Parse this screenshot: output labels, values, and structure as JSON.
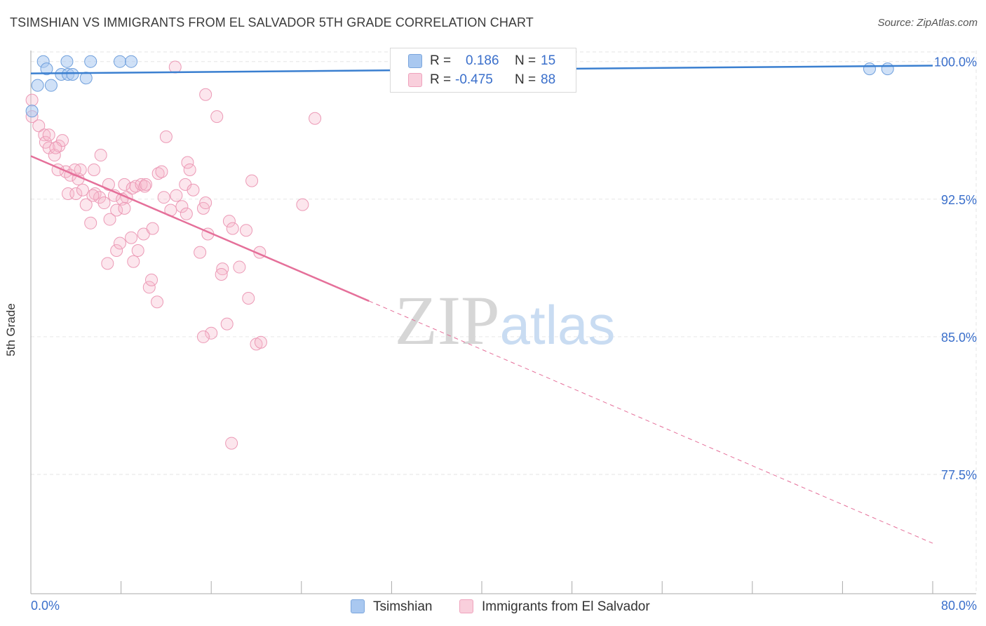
{
  "chart_data": {
    "type": "scatter",
    "title": "TSIMSHIAN VS IMMIGRANTS FROM EL SALVADOR 5TH GRADE CORRELATION CHART",
    "source": "Source: ZipAtlas.com",
    "xlabel": "",
    "ylabel": "5th Grade",
    "xlim": [
      0,
      80
    ],
    "ylim": [
      71,
      100.6
    ],
    "x_tick_labels": [
      "0.0%",
      "80.0%"
    ],
    "y_ticks": [
      100,
      92.5,
      85,
      77.5
    ],
    "y_tick_labels": [
      "100.0%",
      "92.5%",
      "85.0%",
      "77.5%"
    ],
    "grid": true,
    "watermark": "ZIPatlas",
    "colors": {
      "blue": "#a9c8f0",
      "blue_line": "#3a7fd0",
      "pink": "#f5b8cc",
      "pink_line": "#e5709a",
      "axis_text": "#3a6fcb"
    },
    "stats": [
      {
        "r_label": "R =",
        "r_value": "0.186",
        "n_label": "N =",
        "n_value": "15"
      },
      {
        "r_label": "R =",
        "r_value": "-0.475",
        "n_label": "N =",
        "n_value": "88"
      }
    ],
    "series": [
      {
        "name": "Tsimshian",
        "color": "#a9c8f0",
        "points": [
          [
            1.1,
            100.0
          ],
          [
            1.4,
            99.6
          ],
          [
            3.2,
            100.0
          ],
          [
            5.3,
            100.0
          ],
          [
            7.9,
            100.0
          ],
          [
            8.9,
            100.0
          ],
          [
            0.6,
            98.7
          ],
          [
            1.8,
            98.7
          ],
          [
            2.7,
            99.3
          ],
          [
            3.3,
            99.3
          ],
          [
            3.7,
            99.3
          ],
          [
            4.9,
            99.1
          ],
          [
            0.1,
            97.3
          ],
          [
            74.4,
            99.6
          ],
          [
            76.0,
            99.6
          ]
        ],
        "trend": {
          "x": [
            0,
            80
          ],
          "y": [
            99.35,
            99.78
          ]
        }
      },
      {
        "name": "Immigrants from El Salvador",
        "color": "#f5b8cc",
        "points": [
          [
            0.1,
            97.9
          ],
          [
            0.1,
            97.0
          ],
          [
            0.7,
            96.5
          ],
          [
            1.2,
            96.0
          ],
          [
            1.3,
            95.6
          ],
          [
            1.6,
            95.3
          ],
          [
            2.1,
            94.9
          ],
          [
            2.5,
            95.4
          ],
          [
            2.8,
            95.7
          ],
          [
            3.1,
            94.0
          ],
          [
            3.5,
            93.8
          ],
          [
            4.2,
            93.6
          ],
          [
            4.4,
            94.1
          ],
          [
            3.3,
            92.8
          ],
          [
            4.0,
            92.8
          ],
          [
            4.6,
            93.0
          ],
          [
            4.9,
            92.2
          ],
          [
            5.3,
            91.2
          ],
          [
            5.7,
            92.8
          ],
          [
            6.1,
            92.6
          ],
          [
            5.6,
            94.1
          ],
          [
            6.2,
            94.9
          ],
          [
            6.5,
            92.3
          ],
          [
            6.9,
            93.3
          ],
          [
            7.4,
            92.7
          ],
          [
            7.6,
            91.9
          ],
          [
            8.3,
            93.3
          ],
          [
            8.5,
            92.6
          ],
          [
            9.0,
            93.1
          ],
          [
            9.3,
            93.2
          ],
          [
            9.8,
            93.3
          ],
          [
            10.1,
            93.2
          ],
          [
            11.3,
            93.9
          ],
          [
            11.6,
            94.0
          ],
          [
            12.0,
            95.9
          ],
          [
            11.8,
            92.6
          ],
          [
            12.4,
            91.9
          ],
          [
            12.9,
            92.7
          ],
          [
            13.4,
            92.1
          ],
          [
            13.7,
            93.3
          ],
          [
            13.9,
            94.5
          ],
          [
            14.1,
            94.1
          ],
          [
            14.4,
            93.0
          ],
          [
            13.8,
            91.7
          ],
          [
            15.3,
            92.0
          ],
          [
            15.5,
            92.3
          ],
          [
            15.7,
            90.6
          ],
          [
            15.0,
            89.6
          ],
          [
            17.6,
            91.3
          ],
          [
            17.9,
            90.9
          ],
          [
            17.0,
            88.7
          ],
          [
            16.9,
            88.4
          ],
          [
            18.5,
            88.8
          ],
          [
            19.1,
            90.8
          ],
          [
            19.6,
            93.5
          ],
          [
            20.3,
            89.6
          ],
          [
            19.3,
            87.1
          ],
          [
            20.0,
            84.6
          ],
          [
            20.4,
            84.7
          ],
          [
            17.4,
            85.7
          ],
          [
            16.0,
            85.2
          ],
          [
            15.3,
            85.0
          ],
          [
            7.0,
            91.4
          ],
          [
            6.8,
            89.0
          ],
          [
            7.6,
            89.7
          ],
          [
            7.9,
            90.1
          ],
          [
            8.9,
            90.4
          ],
          [
            9.1,
            89.1
          ],
          [
            9.5,
            89.7
          ],
          [
            10.0,
            90.6
          ],
          [
            10.8,
            90.9
          ],
          [
            10.5,
            87.7
          ],
          [
            10.7,
            88.1
          ],
          [
            11.2,
            86.9
          ],
          [
            8.1,
            92.5
          ],
          [
            12.8,
            99.7
          ],
          [
            15.5,
            98.2
          ],
          [
            16.5,
            97.0
          ],
          [
            25.2,
            96.9
          ],
          [
            24.1,
            92.2
          ],
          [
            8.3,
            92.0
          ],
          [
            10.2,
            93.3
          ],
          [
            3.9,
            94.1
          ],
          [
            2.4,
            94.1
          ],
          [
            5.5,
            92.7
          ],
          [
            2.2,
            95.3
          ],
          [
            1.6,
            96.0
          ],
          [
            17.8,
            79.2
          ]
        ],
        "trend": {
          "x": [
            0,
            30
          ],
          "y": [
            94.85,
            86.95
          ]
        },
        "trend_dashed": {
          "x": [
            30,
            80
          ],
          "y": [
            86.95,
            73.75
          ]
        }
      }
    ]
  }
}
